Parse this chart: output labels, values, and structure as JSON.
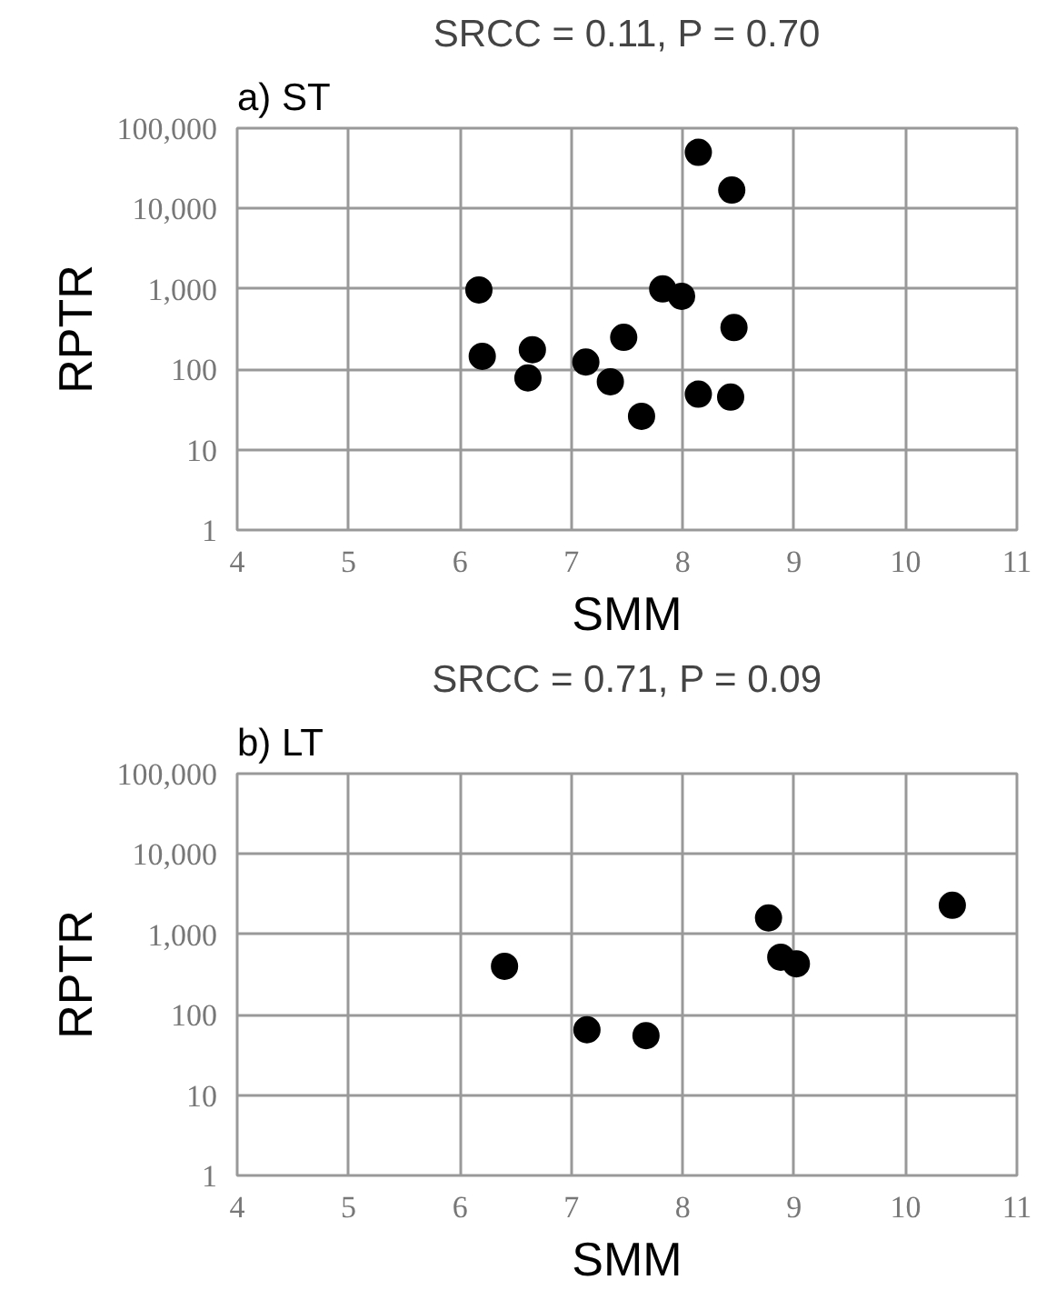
{
  "chart_data": [
    {
      "type": "scatter",
      "title": "a) ST",
      "subtitle": "SRCC = 0.11, P = 0.70",
      "xlabel": "SMM",
      "ylabel": "RPTR",
      "log": "y",
      "grid": true,
      "marker": "circle",
      "xlim": [
        4,
        11
      ],
      "xticks": [
        4,
        5,
        6,
        7,
        8,
        9,
        10,
        11
      ],
      "ylim": [
        1,
        100000
      ],
      "yticks": [
        1,
        10,
        100,
        {
          "value": 1000,
          "label": "1,000"
        },
        {
          "value": 10000,
          "label": "10,000"
        },
        {
          "value": 100000,
          "label": "100,000"
        }
      ],
      "series": [
        {
          "color": "#000000",
          "x": [
            8.14,
            8.44,
            6.17,
            7.82,
            7.99,
            8.46,
            7.47,
            6.2,
            6.65,
            7.13,
            6.61,
            7.35,
            8.14,
            8.43,
            7.63
          ],
          "values": [
            50000,
            17000,
            970,
            1000,
            810,
            330,
            250,
            145,
            175,
            123,
            78,
            70,
            49,
            45,
            26
          ]
        }
      ]
    },
    {
      "type": "scatter",
      "title": "b) LT",
      "subtitle": "SRCC = 0.71, P = 0.09",
      "xlabel": "SMM",
      "ylabel": "RPTR",
      "log": "y",
      "grid": true,
      "marker": "circle",
      "xlim": [
        4,
        11
      ],
      "xticks": [
        4,
        5,
        6,
        7,
        8,
        9,
        10,
        11
      ],
      "ylim": [
        1,
        100000
      ],
      "yticks": [
        1,
        10,
        100,
        {
          "value": 1000,
          "label": "1,000"
        },
        {
          "value": 10000,
          "label": "10,000"
        },
        {
          "value": 100000,
          "label": "100,000"
        }
      ],
      "series": [
        {
          "color": "#000000",
          "x": [
            6.4,
            7.14,
            7.67,
            8.77,
            8.88,
            9.02,
            10.42
          ],
          "values": [
            400,
            65,
            55,
            1600,
            520,
            430,
            2300
          ]
        }
      ]
    }
  ]
}
